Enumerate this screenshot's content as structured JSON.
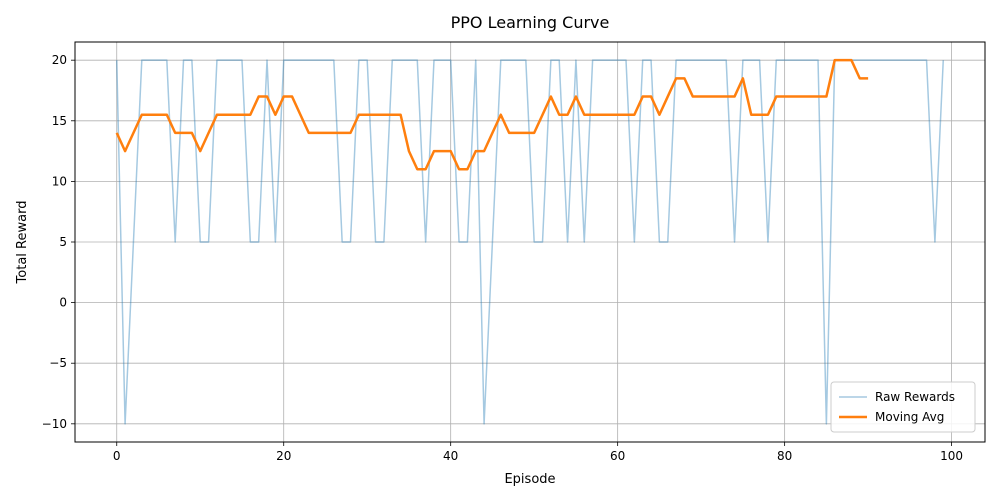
{
  "chart_data": {
    "type": "line",
    "title": "PPO Learning Curve",
    "xlabel": "Episode",
    "ylabel": "Total Reward",
    "xlim": [
      -5,
      104
    ],
    "ylim": [
      -11.5,
      21.5
    ],
    "x_ticks": [
      0,
      20,
      40,
      60,
      80,
      100
    ],
    "x_tick_labels": [
      "0",
      "20",
      "40",
      "60",
      "80",
      "100"
    ],
    "y_ticks": [
      -10,
      -5,
      0,
      5,
      10,
      15,
      20
    ],
    "y_tick_labels": [
      "−10",
      "−5",
      "0",
      "5",
      "10",
      "15",
      "20"
    ],
    "grid": true,
    "legend": {
      "placement": "lower-right"
    },
    "series": [
      {
        "name": "Raw Rewards",
        "color": "#1f77b4",
        "alpha": 0.4,
        "x_start": 0,
        "values": [
          20,
          -10,
          5,
          20,
          20,
          20,
          20,
          5,
          20,
          20,
          5,
          5,
          20,
          20,
          20,
          20,
          5,
          5,
          20,
          5,
          20,
          20,
          20,
          20,
          20,
          20,
          20,
          5,
          5,
          20,
          20,
          5,
          5,
          20,
          20,
          20,
          20,
          5,
          20,
          20,
          20,
          5,
          5,
          20,
          -10,
          5,
          20,
          20,
          20,
          20,
          5,
          5,
          20,
          20,
          5,
          20,
          5,
          20,
          20,
          20,
          20,
          20,
          5,
          20,
          20,
          5,
          5,
          20,
          20,
          20,
          20,
          20,
          20,
          20,
          5,
          20,
          20,
          20,
          5,
          20,
          20,
          20,
          20,
          20,
          20,
          -10,
          20,
          20,
          20,
          20,
          20,
          20,
          20,
          20,
          20,
          20,
          20,
          20,
          5,
          20
        ]
      },
      {
        "name": "Moving Avg",
        "color": "#ff7f0e",
        "alpha": 1,
        "x_start": 0,
        "values": [
          14,
          12.5,
          14,
          15.5,
          15.5,
          15.5,
          15.5,
          14,
          14,
          14,
          12.5,
          14,
          15.5,
          15.5,
          15.5,
          15.5,
          15.5,
          17,
          17,
          15.5,
          17,
          17,
          15.5,
          14,
          14,
          14,
          14,
          14,
          14,
          15.5,
          15.5,
          15.5,
          15.5,
          15.5,
          15.5,
          12.5,
          11,
          11,
          12.5,
          12.5,
          12.5,
          11,
          11,
          12.5,
          12.5,
          14,
          15.5,
          14,
          14,
          14,
          14,
          15.5,
          17,
          15.5,
          15.5,
          17,
          15.5,
          15.5,
          15.5,
          15.5,
          15.5,
          15.5,
          15.5,
          17,
          17,
          15.5,
          17,
          18.5,
          18.5,
          17,
          17,
          17,
          17,
          17,
          17,
          18.5,
          15.5,
          15.5,
          15.5,
          17,
          17,
          17,
          17,
          17,
          17,
          17,
          20,
          20,
          20,
          18.5,
          18.5
        ]
      }
    ]
  }
}
